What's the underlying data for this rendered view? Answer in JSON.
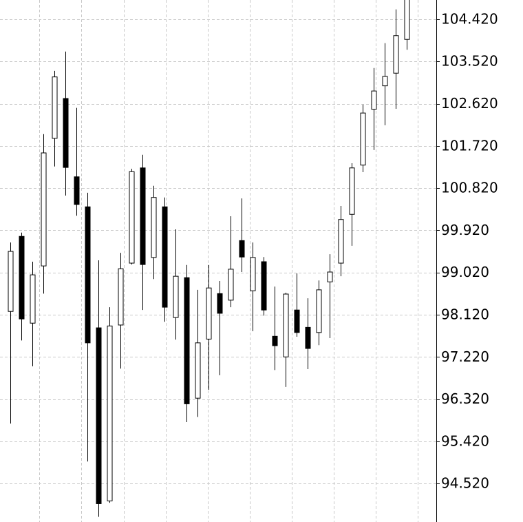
{
  "chart_data": {
    "type": "candlestick",
    "open": [
      98.19,
      99.79,
      97.94,
      99.16,
      101.88,
      102.73,
      101.06,
      100.42,
      97.84,
      94.15,
      97.9,
      99.22,
      101.25,
      99.34,
      100.42,
      98.06,
      98.91,
      96.34,
      97.6,
      98.57,
      98.43,
      99.7,
      98.63,
      99.25,
      97.66,
      97.22,
      98.22,
      97.85,
      97.74,
      98.82,
      99.22,
      100.26,
      101.31,
      102.5,
      103.0,
      103.27,
      103.99
    ],
    "high": [
      99.66,
      99.87,
      99.25,
      101.97,
      103.32,
      103.73,
      102.53,
      100.72,
      99.28,
      98.28,
      99.44,
      101.23,
      101.53,
      100.87,
      100.62,
      99.94,
      99.18,
      98.65,
      99.18,
      98.84,
      100.22,
      100.6,
      99.66,
      99.35,
      98.72,
      98.59,
      99.0,
      98.47,
      98.85,
      99.41,
      100.44,
      101.35,
      102.6,
      103.38,
      103.91,
      104.63,
      104.95
    ],
    "low": [
      95.8,
      97.57,
      97.02,
      98.57,
      101.28,
      100.66,
      100.23,
      94.99,
      93.81,
      94.11,
      96.97,
      99.19,
      98.22,
      98.88,
      97.97,
      97.59,
      95.83,
      95.94,
      96.52,
      96.83,
      98.28,
      99.03,
      97.77,
      98.1,
      96.94,
      96.58,
      97.65,
      96.96,
      97.47,
      97.62,
      98.94,
      99.59,
      101.16,
      101.63,
      102.16,
      102.51,
      103.77
    ],
    "close": [
      99.47,
      98.03,
      98.97,
      101.57,
      103.19,
      101.26,
      100.47,
      97.52,
      94.09,
      97.88,
      99.1,
      101.17,
      99.19,
      100.62,
      98.28,
      98.94,
      96.22,
      97.52,
      98.69,
      98.15,
      99.09,
      99.35,
      99.34,
      98.22,
      97.46,
      98.56,
      97.74,
      97.4,
      98.65,
      99.03,
      100.15,
      101.25,
      102.42,
      102.89,
      103.2,
      104.07,
      104.85
    ],
    "up_color": "#ffffff",
    "down_color": "#000000",
    "ylim": [
      93.7,
      104.83
    ],
    "yticks": [
      {
        "value": 104.42,
        "label": "104.420"
      },
      {
        "value": 103.52,
        "label": "103.520"
      },
      {
        "value": 102.62,
        "label": "102.620"
      },
      {
        "value": 101.72,
        "label": "101.720"
      },
      {
        "value": 100.82,
        "label": "100.820"
      },
      {
        "value": 99.92,
        "label": "99.920"
      },
      {
        "value": 99.02,
        "label": "99.020"
      },
      {
        "value": 98.12,
        "label": "98.120"
      },
      {
        "value": 97.22,
        "label": "97.220"
      },
      {
        "value": 96.32,
        "label": "96.320"
      },
      {
        "value": 95.42,
        "label": "95.420"
      },
      {
        "value": 94.52,
        "label": "94.520"
      }
    ],
    "grid": true
  }
}
